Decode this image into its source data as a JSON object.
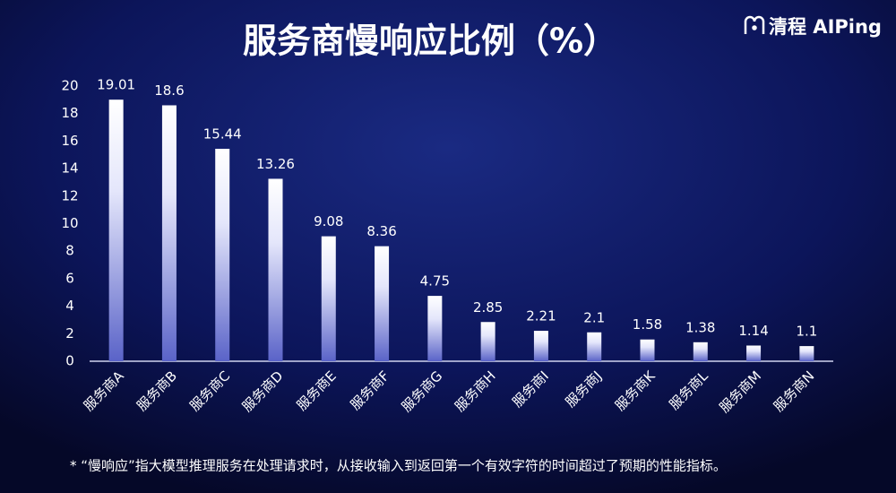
{
  "chart_data": {
    "type": "bar",
    "title": "服务商慢响应比例（%）",
    "logo": "清程 AIPing",
    "categories": [
      "服务商A",
      "服务商B",
      "服务商C",
      "服务商D",
      "服务商E",
      "服务商F",
      "服务商G",
      "服务商H",
      "服务商I",
      "服务商J",
      "服务商K",
      "服务商L",
      "服务商M",
      "服务商N"
    ],
    "values": [
      19.01,
      18.6,
      15.44,
      13.26,
      9.08,
      8.36,
      4.75,
      2.85,
      2.21,
      2.1,
      1.58,
      1.38,
      1.14,
      1.1
    ],
    "color": "#c9ccf5",
    "ylim": [
      0,
      20
    ],
    "yticks": [
      0,
      2,
      4,
      6,
      8,
      10,
      12,
      14,
      16,
      18,
      20
    ],
    "grid": false,
    "footnote": "* “慢响应”指大模型推理服务在处理请求时，从接收输入到返回第一个有效字符的时间超过了预期的性能指标。"
  }
}
